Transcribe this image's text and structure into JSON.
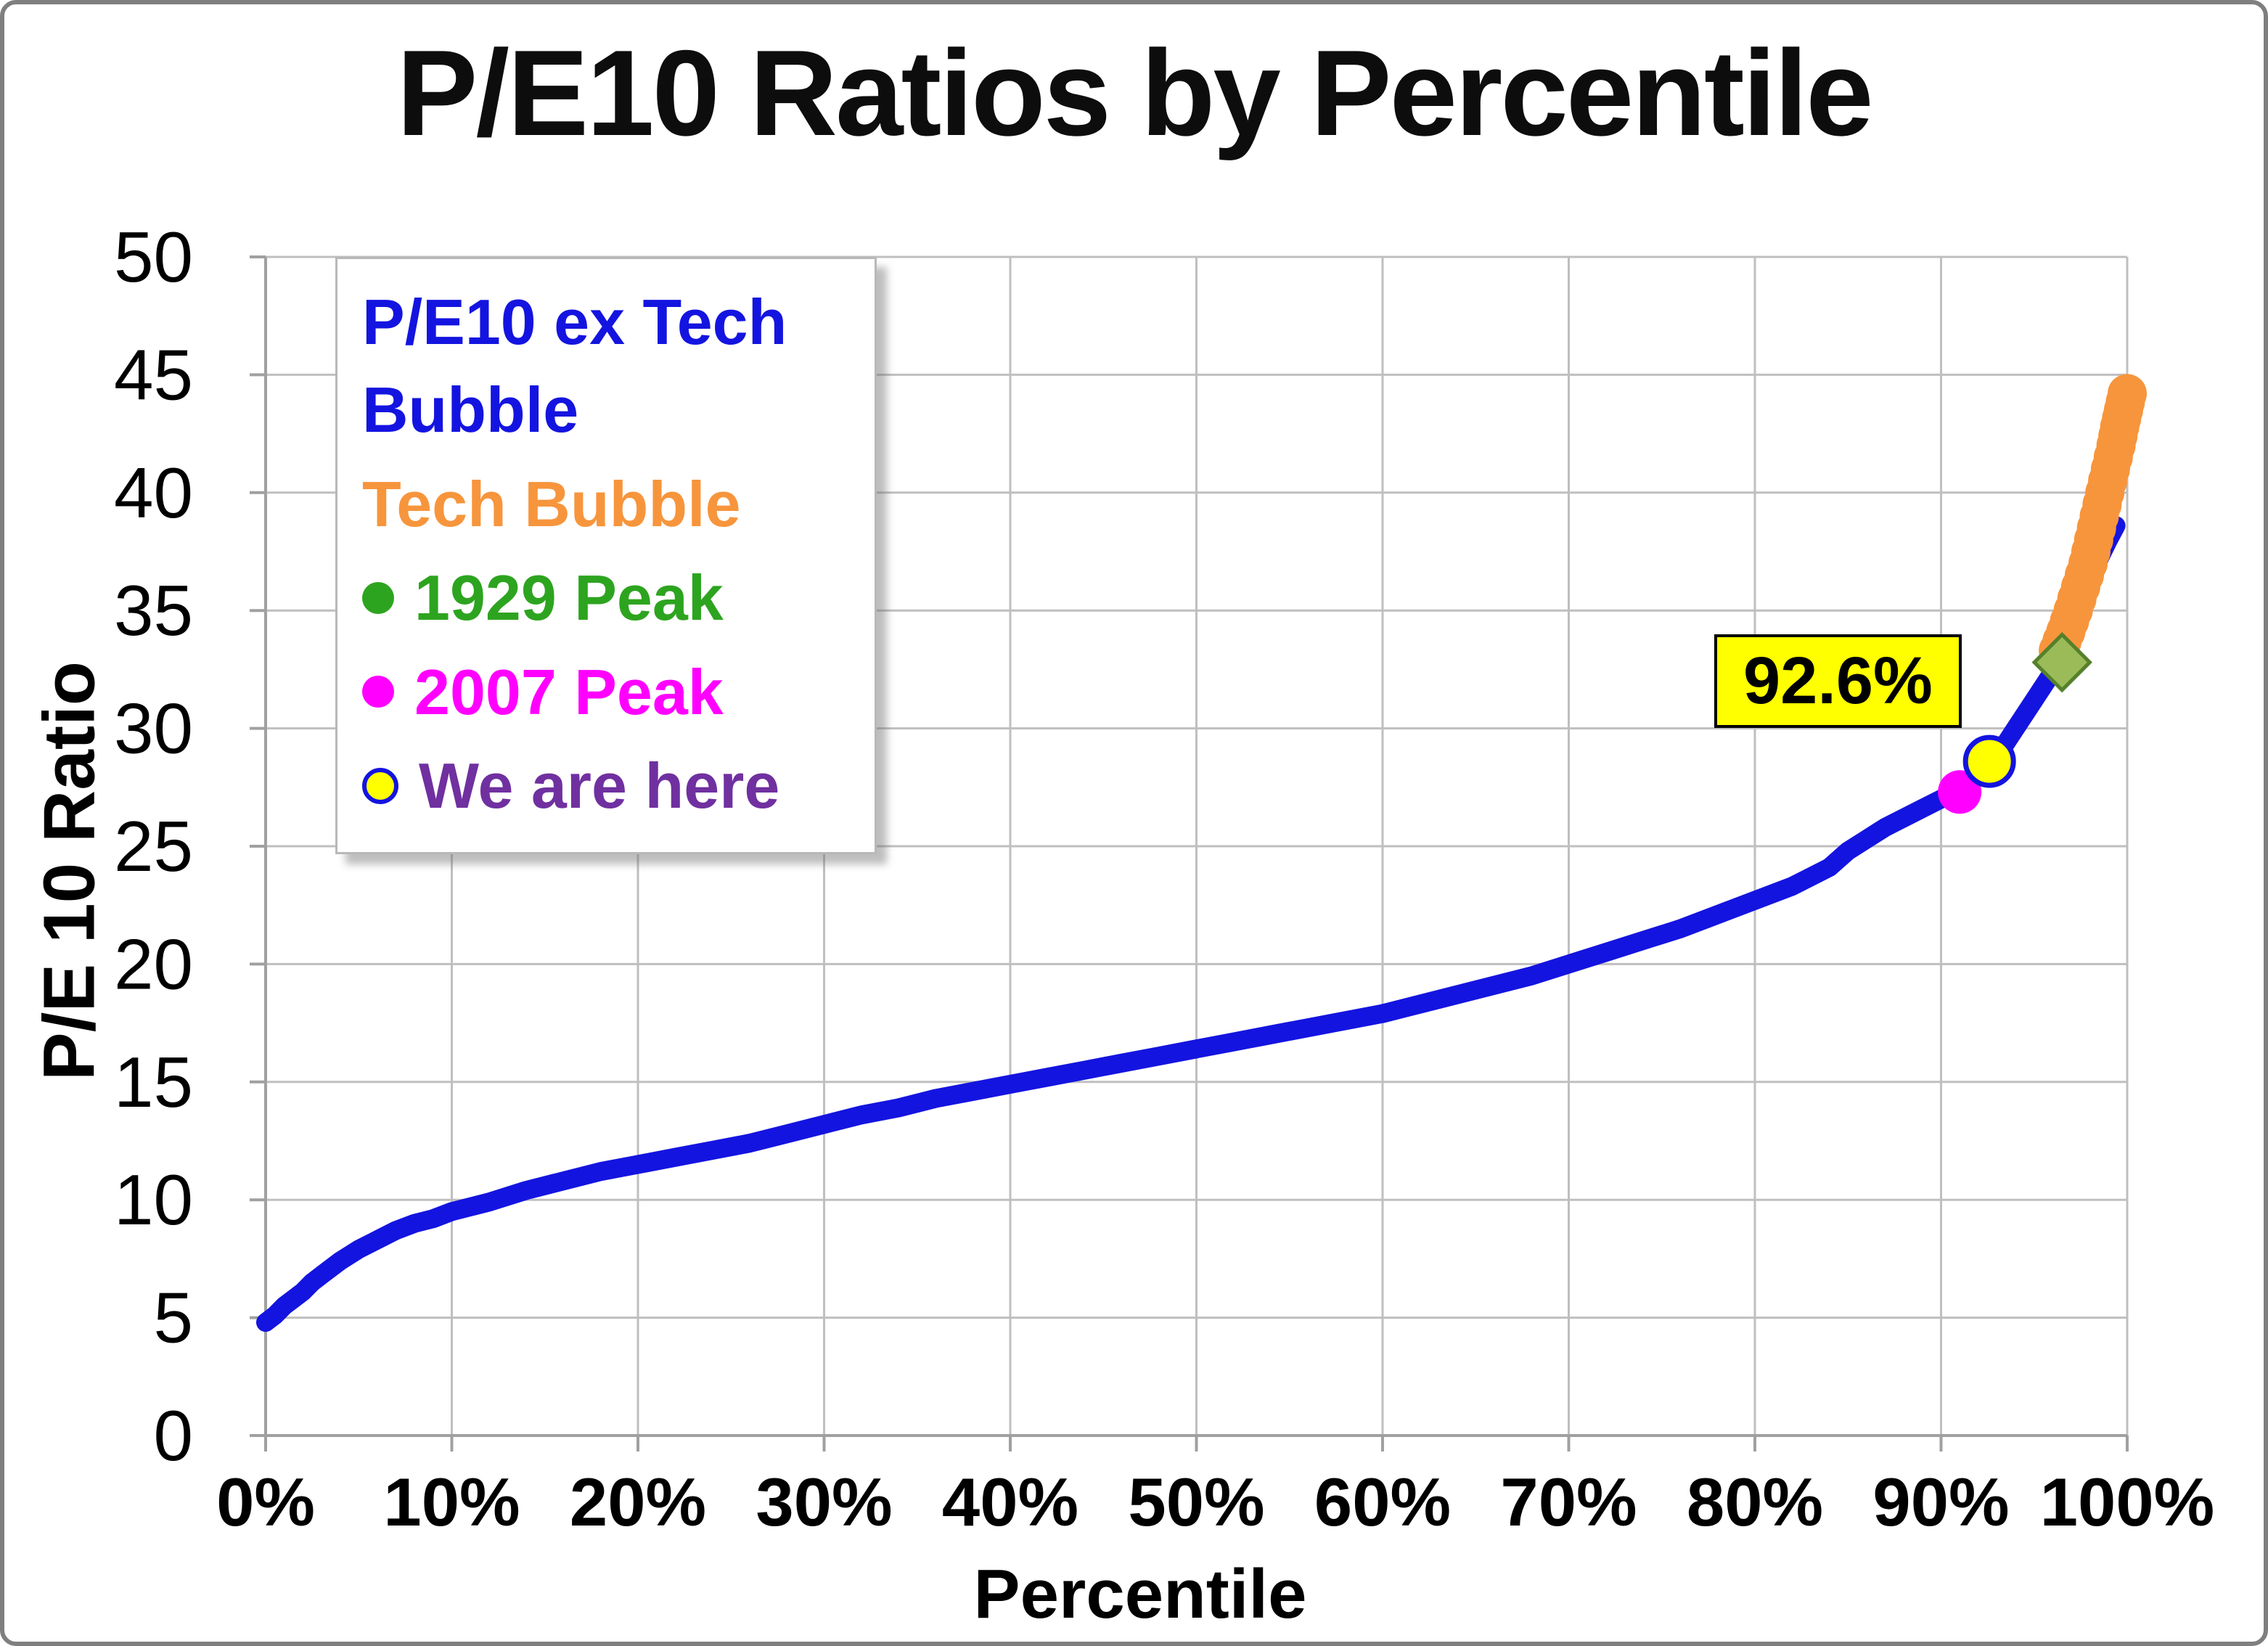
{
  "title": "P/E10 Ratios by Percentile",
  "legend": {
    "items": [
      {
        "label": "P/E10 ex Tech Bubble",
        "color": "#1414e0",
        "marker": "none"
      },
      {
        "label": "Tech Bubble",
        "color": "#f7953c",
        "marker": "none"
      },
      {
        "label": "1929 Peak",
        "color": "#2da41f",
        "marker": "circle",
        "marker_color": "#2da41f"
      },
      {
        "label": "2007 Peak",
        "color": "#ff00ff",
        "marker": "circle",
        "marker_color": "#ff00ff"
      },
      {
        "label": "We are here",
        "color": "#7030a0",
        "marker": "ringed-circle",
        "marker_color": "#ffff00",
        "marker_outline": "#1414e0"
      }
    ]
  },
  "chart_data": {
    "type": "scatter",
    "title": "P/E10 Ratios by Percentile",
    "xlabel": "Percentile",
    "ylabel": "P/E 10 Ratio",
    "xlim": [
      0,
      100
    ],
    "ylim": [
      0,
      50
    ],
    "grid": true,
    "grid_color": "#bfbfbf",
    "axis_color": "#a0a0a0",
    "xticks": {
      "values": [
        0,
        10,
        20,
        30,
        40,
        50,
        60,
        70,
        80,
        90,
        100
      ],
      "labels": [
        "0%",
        "10%",
        "20%",
        "30%",
        "40%",
        "50%",
        "60%",
        "70%",
        "80%",
        "90%",
        "100%"
      ]
    },
    "yticks": {
      "values": [
        0,
        5,
        10,
        15,
        20,
        25,
        30,
        35,
        40,
        45,
        50
      ],
      "labels": [
        "0",
        "5",
        "10",
        "15",
        "20",
        "25",
        "30",
        "35",
        "40",
        "45",
        "50"
      ]
    },
    "series": [
      {
        "name": "P/E10 ex Tech Bubble",
        "color": "#1414e0",
        "style": "thick-line",
        "points": [
          [
            0,
            4.8
          ],
          [
            0.5,
            5.1
          ],
          [
            1,
            5.5
          ],
          [
            1.5,
            5.8
          ],
          [
            2,
            6.1
          ],
          [
            2.5,
            6.5
          ],
          [
            3,
            6.8
          ],
          [
            4,
            7.4
          ],
          [
            5,
            7.9
          ],
          [
            6,
            8.3
          ],
          [
            7,
            8.7
          ],
          [
            8,
            9.0
          ],
          [
            9,
            9.2
          ],
          [
            10,
            9.5
          ],
          [
            12,
            9.9
          ],
          [
            14,
            10.4
          ],
          [
            16,
            10.8
          ],
          [
            18,
            11.2
          ],
          [
            20,
            11.5
          ],
          [
            22,
            11.8
          ],
          [
            24,
            12.1
          ],
          [
            26,
            12.4
          ],
          [
            28,
            12.8
          ],
          [
            30,
            13.2
          ],
          [
            32,
            13.6
          ],
          [
            34,
            13.9
          ],
          [
            36,
            14.3
          ],
          [
            38,
            14.6
          ],
          [
            40,
            14.9
          ],
          [
            42,
            15.2
          ],
          [
            44,
            15.5
          ],
          [
            46,
            15.8
          ],
          [
            48,
            16.1
          ],
          [
            50,
            16.4
          ],
          [
            52,
            16.7
          ],
          [
            54,
            17.0
          ],
          [
            56,
            17.3
          ],
          [
            58,
            17.6
          ],
          [
            60,
            17.9
          ],
          [
            62,
            18.3
          ],
          [
            64,
            18.7
          ],
          [
            66,
            19.1
          ],
          [
            68,
            19.5
          ],
          [
            70,
            20.0
          ],
          [
            72,
            20.5
          ],
          [
            74,
            21.0
          ],
          [
            76,
            21.5
          ],
          [
            78,
            22.1
          ],
          [
            80,
            22.7
          ],
          [
            82,
            23.3
          ],
          [
            84,
            24.1
          ],
          [
            85,
            24.8
          ],
          [
            86,
            25.3
          ],
          [
            87,
            25.8
          ],
          [
            88,
            26.2
          ],
          [
            89,
            26.6
          ],
          [
            90,
            27.0
          ],
          [
            91,
            27.4
          ],
          [
            92,
            28.0
          ],
          [
            92.6,
            28.6
          ],
          [
            93.5,
            29.4
          ],
          [
            94,
            30.0
          ],
          [
            95,
            31.2
          ],
          [
            96,
            32.4
          ],
          [
            96.5,
            33.1
          ],
          [
            97,
            34.0
          ],
          [
            97.5,
            35.1
          ],
          [
            98,
            36.2
          ],
          [
            98.5,
            37.2
          ],
          [
            99,
            38.0
          ],
          [
            99.4,
            38.6
          ]
        ]
      },
      {
        "name": "Tech Bubble",
        "color": "#f7953c",
        "style": "dots",
        "points": [
          [
            96.3,
            33.3
          ],
          [
            96.7,
            34.1
          ],
          [
            97.1,
            35.0
          ],
          [
            97.5,
            36.0
          ],
          [
            97.9,
            37.0
          ],
          [
            98.2,
            38.0
          ],
          [
            98.5,
            39.0
          ],
          [
            98.8,
            40.0
          ],
          [
            99.1,
            41.0
          ],
          [
            99.4,
            42.0
          ],
          [
            99.6,
            42.8
          ],
          [
            99.8,
            43.5
          ],
          [
            100,
            44.2
          ]
        ]
      }
    ],
    "markers": [
      {
        "name": "1929 Peak",
        "shape": "diamond",
        "fill": "#9bbb59",
        "stroke": "#55802b",
        "x": 96.5,
        "y": 32.8
      },
      {
        "name": "2007 Peak",
        "shape": "circle",
        "fill": "#ff00ff",
        "stroke": "none",
        "x": 91,
        "y": 27.3
      },
      {
        "name": "We are here",
        "shape": "circle",
        "fill": "#ffff00",
        "stroke": "#1414e0",
        "x": 92.6,
        "y": 28.6
      }
    ],
    "annotation": {
      "text": "92.6%",
      "bg": "#ffff00",
      "x": 79,
      "y": 33
    }
  }
}
